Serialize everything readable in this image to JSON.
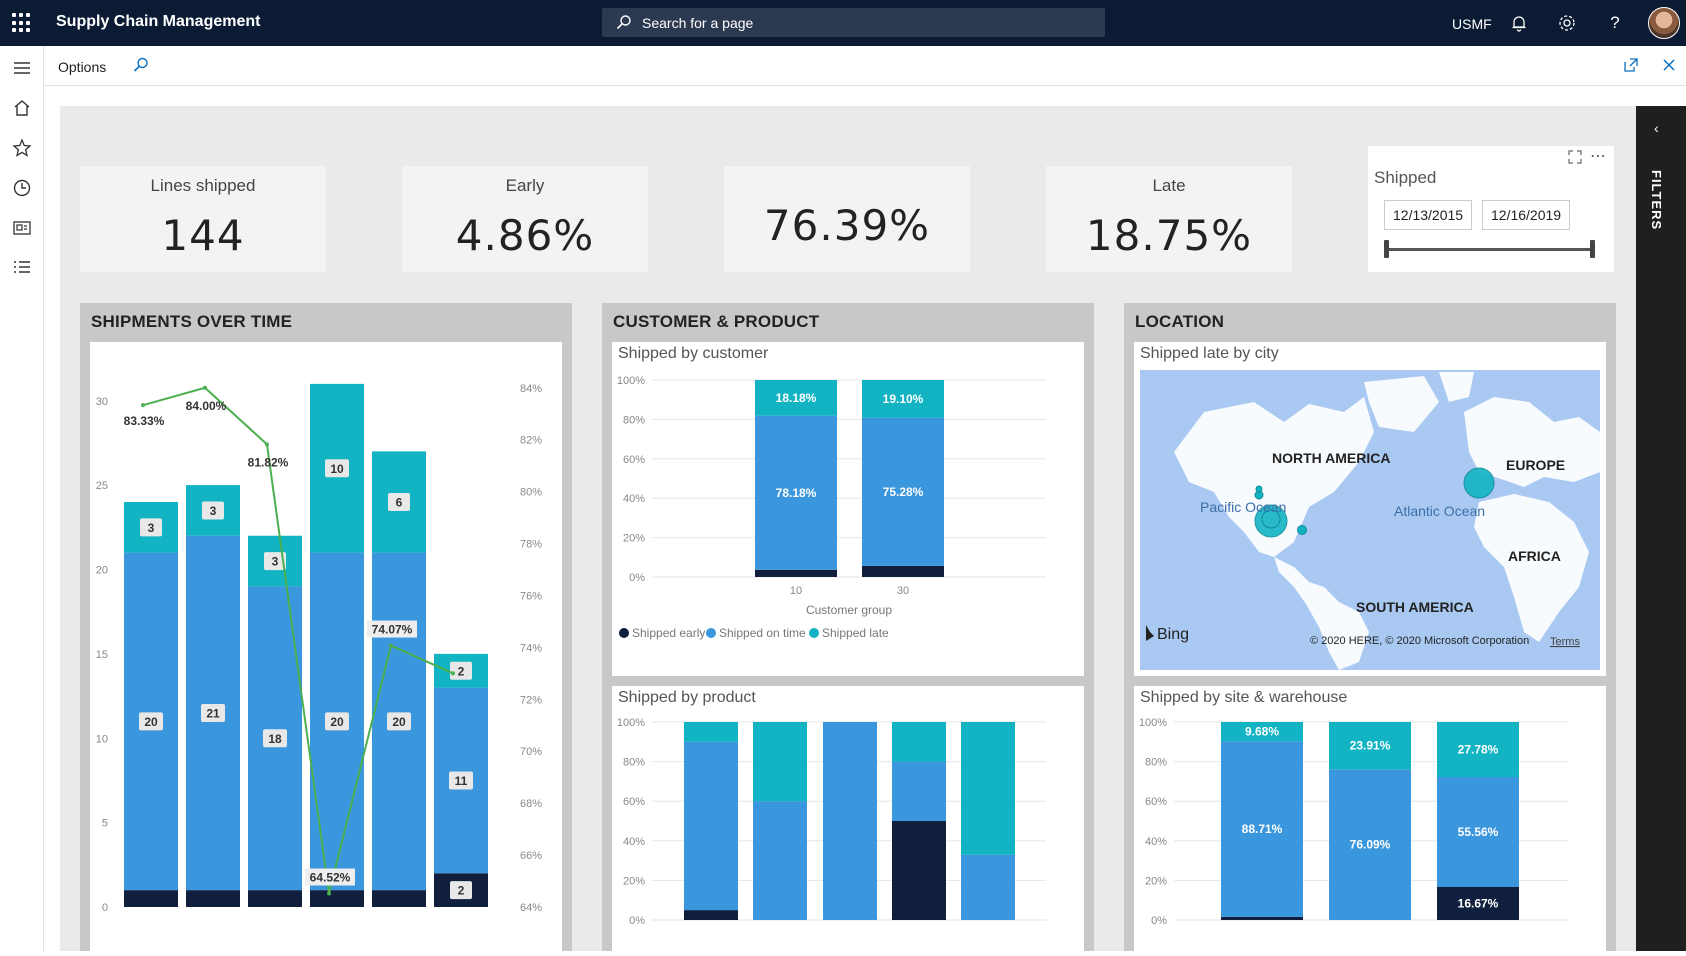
{
  "topbar": {
    "app_title": "Supply Chain Management",
    "search_placeholder": "Search for a page",
    "company": "USMF"
  },
  "actionbar": {
    "options_label": "Options"
  },
  "kpis": [
    {
      "title": "Lines shipped",
      "value": "144"
    },
    {
      "title": "Early",
      "value": "4.86%"
    },
    {
      "title": "",
      "value": "76.39%"
    },
    {
      "title": "Late",
      "value": "18.75%"
    }
  ],
  "slicer": {
    "title": "Shipped",
    "start": "12/13/2015",
    "end": "12/16/2019"
  },
  "filters_label": "FILTERS",
  "panels": {
    "shipments": {
      "title": "SHIPMENTS OVER TIME"
    },
    "customer_product": {
      "title": "CUSTOMER & PRODUCT",
      "customer_card_title": "Shipped by customer",
      "product_card_title": "Shipped by product"
    },
    "location": {
      "title": "LOCATION",
      "map_card_title": "Shipped late by city",
      "site_card_title": "Shipped by site & warehouse"
    }
  },
  "map": {
    "labels": {
      "north_america": "NORTH AMERICA",
      "europe": "EUROPE",
      "pacific": "Pacific Ocean",
      "atlantic": "Atlantic Ocean",
      "africa": "AFRICA",
      "south_america": "SOUTH AMERICA"
    },
    "bing": "Bing",
    "copyright": "© 2020 HERE, © 2020 Microsoft Corporation",
    "terms": "Terms"
  },
  "colors": {
    "early": "#0f1f3d",
    "on_time": "#3a96dd",
    "late": "#12b4c4"
  },
  "chart_data": [
    {
      "type": "bar",
      "name": "shipments_over_time",
      "stacked": true,
      "ylim": [
        0,
        32
      ],
      "y_ticks": [
        "0",
        "5",
        "10",
        "15",
        "20",
        "25",
        "30"
      ],
      "y2_ticks": [
        "64%",
        "66%",
        "68%",
        "70%",
        "72%",
        "74%",
        "76%",
        "78%",
        "80%",
        "82%",
        "84%"
      ],
      "y2lim": [
        64,
        84.8
      ],
      "series": [
        {
          "name": "Shipped early",
          "values": [
            1,
            1,
            1,
            1,
            1,
            2
          ]
        },
        {
          "name": "Shipped on time",
          "values": [
            20,
            21,
            18,
            20,
            20,
            11
          ]
        },
        {
          "name": "Shipped late",
          "values": [
            3,
            3,
            3,
            10,
            6,
            2
          ]
        }
      ],
      "series_labels": [
        [
          "",
          "",
          "",
          "",
          "",
          "2"
        ],
        [
          "20",
          "21",
          "18",
          "20",
          "20",
          "11"
        ],
        [
          "3",
          "3",
          "3",
          "10",
          "6",
          "2"
        ]
      ],
      "line": {
        "values": [
          83.33,
          84.0,
          81.82,
          64.52,
          74.07,
          73.0
        ],
        "labels": [
          "83.33%",
          "84.00%",
          "81.82%",
          "64.52%",
          "74.07%",
          ""
        ]
      }
    },
    {
      "type": "bar",
      "name": "shipped_by_customer",
      "stacked": true,
      "percent": true,
      "categories": [
        "10",
        "30"
      ],
      "xlabel": "Customer group",
      "y_ticks": [
        "0%",
        "20%",
        "40%",
        "60%",
        "80%",
        "100%"
      ],
      "series": [
        {
          "name": "Shipped early",
          "values": [
            3.64,
            5.62
          ]
        },
        {
          "name": "Shipped on time",
          "values": [
            78.18,
            75.28
          ]
        },
        {
          "name": "Shipped late",
          "values": [
            18.18,
            19.1
          ]
        }
      ],
      "series_labels": [
        [
          "",
          ""
        ],
        [
          "78.18%",
          "75.28%"
        ],
        [
          "18.18%",
          "19.10%"
        ]
      ],
      "legend": [
        "Shipped early",
        "Shipped on time",
        "Shipped late"
      ]
    },
    {
      "type": "bar",
      "name": "shipped_by_product",
      "stacked": true,
      "percent": true,
      "y_ticks": [
        "0%",
        "20%",
        "40%",
        "60%",
        "80%",
        "100%"
      ],
      "series": [
        {
          "name": "Shipped early",
          "values": [
            5,
            0,
            0,
            50,
            0
          ]
        },
        {
          "name": "Shipped on time",
          "values": [
            85,
            60,
            100,
            30,
            33
          ]
        },
        {
          "name": "Shipped late",
          "values": [
            10,
            40,
            0,
            20,
            67
          ]
        }
      ]
    },
    {
      "type": "bar",
      "name": "shipped_by_site",
      "stacked": true,
      "percent": true,
      "y_ticks": [
        "0%",
        "20%",
        "40%",
        "60%",
        "80%",
        "100%"
      ],
      "series": [
        {
          "name": "Shipped early",
          "values": [
            1.61,
            0,
            16.67
          ]
        },
        {
          "name": "Shipped on time",
          "values": [
            88.71,
            76.09,
            55.56
          ]
        },
        {
          "name": "Shipped late",
          "values": [
            9.68,
            23.91,
            27.78
          ]
        }
      ],
      "series_labels": [
        [
          "",
          "",
          "16.67%"
        ],
        [
          "88.71%",
          "76.09%",
          "55.56%"
        ],
        [
          "9.68%",
          "23.91%",
          "27.78%"
        ]
      ]
    }
  ]
}
